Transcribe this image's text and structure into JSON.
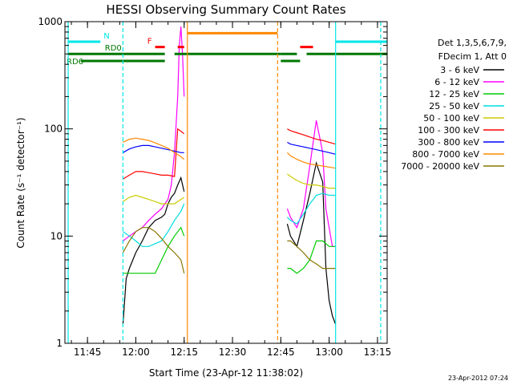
{
  "chart_data": {
    "type": "line",
    "title": "HESSI Observing Summary Count Rates",
    "xlabel": "Start Time (23-Apr-12 11:38:02)",
    "ylabel": "Count Rate (s⁻¹ detector⁻¹)",
    "yscale": "log",
    "ylim": [
      1,
      1000
    ],
    "xlim": [
      "11:38",
      "13:18"
    ],
    "xtick_labels": [
      "11:45",
      "12:00",
      "12:15",
      "12:30",
      "12:45",
      "13:00",
      "13:15"
    ],
    "ytick_labels": [
      "1",
      "10",
      "100",
      "1000"
    ],
    "legend_header": [
      "Det 1,3,5,6,7,9,",
      "FDecim 1, Att 0"
    ],
    "legend_placement": "right, outside plot",
    "timestamp": "23-Apr-2012 07:24",
    "series": [
      {
        "name": "3 - 6 keV",
        "color": "#000000",
        "segments": [
          {
            "t": [
              "11:56",
              "11:57",
              "11:58",
              "12:00",
              "12:02",
              "12:04",
              "12:06",
              "12:08",
              "12:09",
              "12:10",
              "12:11",
              "12:12",
              "12:13",
              "12:14",
              "12:15"
            ],
            "v": [
              1.5,
              4,
              5,
              7,
              9,
              12,
              14,
              15,
              16,
              20,
              23,
              25,
              30,
              35,
              26
            ]
          },
          {
            "t": [
              "12:47",
              "12:48",
              "12:50",
              "12:52",
              "12:54",
              "12:56",
              "12:58",
              "12:59",
              "13:00",
              "13:01",
              "13:02"
            ],
            "v": [
              13,
              10,
              8,
              14,
              25,
              48,
              32,
              5,
              2.5,
              1.8,
              1.5
            ]
          }
        ]
      },
      {
        "name": "6 - 12 keV",
        "color": "#ff00ff",
        "segments": [
          {
            "t": [
              "11:56",
              "11:58",
              "12:00",
              "12:02",
              "12:04",
              "12:06",
              "12:08",
              "12:09",
              "12:10",
              "12:11",
              "12:12",
              "12:13",
              "12:13.5",
              "12:14",
              "12:14.5",
              "12:15"
            ],
            "v": [
              9,
              10,
              11,
              12,
              14,
              16,
              18,
              20,
              22,
              30,
              60,
              200,
              600,
              900,
              500,
              200
            ]
          },
          {
            "t": [
              "12:47",
              "12:48",
              "12:50",
              "12:52",
              "12:54",
              "12:56",
              "12:57",
              "12:58",
              "12:59",
              "13:00",
              "13:01",
              "13:02"
            ],
            "v": [
              18,
              15,
              12,
              18,
              45,
              120,
              85,
              60,
              18,
              12,
              8,
              8
            ]
          }
        ]
      },
      {
        "name": "12 - 25 keV",
        "color": "#00cc00",
        "segments": [
          {
            "t": [
              "11:56",
              "11:58",
              "12:00",
              "12:02",
              "12:04",
              "12:06",
              "12:08",
              "12:10",
              "12:12",
              "12:14",
              "12:15"
            ],
            "v": [
              4.5,
              4.5,
              4.5,
              4.5,
              4.5,
              4.5,
              6,
              8,
              10,
              12,
              10
            ]
          },
          {
            "t": [
              "12:47",
              "12:48",
              "12:50",
              "12:52",
              "12:54",
              "12:56",
              "12:58",
              "13:00",
              "13:02"
            ],
            "v": [
              5,
              5,
              4.5,
              5,
              6,
              9,
              9,
              8,
              8
            ]
          }
        ]
      },
      {
        "name": "25 - 50 keV",
        "color": "#00dddd",
        "segments": [
          {
            "t": [
              "11:56",
              "11:58",
              "12:00",
              "12:02",
              "12:04",
              "12:06",
              "12:08",
              "12:10",
              "12:12",
              "12:14",
              "12:15"
            ],
            "v": [
              11,
              10,
              9,
              8,
              8,
              8.5,
              9,
              11,
              14,
              17,
              20
            ]
          },
          {
            "t": [
              "12:47",
              "12:48",
              "12:50",
              "12:52",
              "12:54",
              "12:56",
              "12:58",
              "13:00",
              "13:02"
            ],
            "v": [
              15,
              14,
              13,
              16,
              20,
              24,
              25,
              24,
              24
            ]
          }
        ]
      },
      {
        "name": "50 - 100 keV",
        "color": "#cccc00",
        "segments": [
          {
            "t": [
              "11:56",
              "11:58",
              "12:00",
              "12:02",
              "12:04",
              "12:06",
              "12:08",
              "12:10",
              "12:12",
              "12:14",
              "12:15"
            ],
            "v": [
              21,
              23,
              24,
              23,
              22,
              21,
              20,
              20,
              20,
              22,
              23
            ]
          },
          {
            "t": [
              "12:47",
              "12:48",
              "12:50",
              "12:52",
              "12:54",
              "12:56",
              "12:58",
              "13:00",
              "13:02"
            ],
            "v": [
              38,
              36,
              33,
              31,
              30,
              30,
              29,
              28,
              28
            ]
          }
        ]
      },
      {
        "name": "100 - 300 keV",
        "color": "#ff0000",
        "segments": [
          {
            "t": [
              "11:56",
              "11:58",
              "12:00",
              "12:02",
              "12:04",
              "12:06",
              "12:08",
              "12:10",
              "12:12",
              "12:13",
              "12:14",
              "12:15"
            ],
            "v": [
              34,
              37,
              40,
              40,
              39,
              38,
              37,
              37,
              36,
              100,
              95,
              90
            ]
          },
          {
            "t": [
              "12:47",
              "12:48",
              "12:50",
              "12:52",
              "12:54",
              "12:56",
              "12:58",
              "13:00",
              "13:02"
            ],
            "v": [
              100,
              96,
              92,
              88,
              84,
              80,
              78,
              75,
              72
            ]
          }
        ]
      },
      {
        "name": "300 - 800 keV",
        "color": "#0000ff",
        "segments": [
          {
            "t": [
              "11:56",
              "11:58",
              "12:00",
              "12:02",
              "12:04",
              "12:06",
              "12:08",
              "12:10",
              "12:12",
              "12:14",
              "12:15"
            ],
            "v": [
              60,
              65,
              68,
              70,
              70,
              68,
              66,
              64,
              62,
              60,
              60
            ]
          },
          {
            "t": [
              "12:47",
              "12:48",
              "12:50",
              "12:52",
              "12:54",
              "12:56",
              "12:58",
              "13:00",
              "13:02"
            ],
            "v": [
              75,
              72,
              70,
              68,
              66,
              64,
              62,
              60,
              58
            ]
          }
        ]
      },
      {
        "name": "800 - 7000 keV",
        "color": "#ff8800",
        "segments": [
          {
            "t": [
              "11:56",
              "11:58",
              "12:00",
              "12:02",
              "12:04",
              "12:06",
              "12:08",
              "12:10",
              "12:12",
              "12:14",
              "12:15"
            ],
            "v": [
              75,
              80,
              82,
              80,
              78,
              74,
              70,
              66,
              60,
              55,
              52
            ]
          },
          {
            "t": [
              "12:47",
              "12:48",
              "12:50",
              "12:52",
              "12:54",
              "12:56",
              "12:58",
              "13:00",
              "13:02"
            ],
            "v": [
              60,
              56,
              52,
              49,
              47,
              46,
              45,
              44,
              43
            ]
          }
        ]
      },
      {
        "name": "7000 - 20000 keV",
        "color": "#887700",
        "segments": [
          {
            "t": [
              "11:56",
              "11:58",
              "12:00",
              "12:02",
              "12:04",
              "12:06",
              "12:08",
              "12:10",
              "12:12",
              "12:14",
              "12:15"
            ],
            "v": [
              7,
              9,
              11,
              12,
              12,
              11,
              9.5,
              8,
              7,
              6,
              4.5
            ]
          },
          {
            "t": [
              "12:47",
              "12:48",
              "12:50",
              "12:52",
              "12:54",
              "12:56",
              "12:58",
              "13:00",
              "13:02"
            ],
            "v": [
              9,
              9,
              8,
              7,
              6,
              5.5,
              5,
              5,
              5
            ]
          }
        ]
      }
    ],
    "status_bars": [
      {
        "label": "N",
        "color": "#00e6e6",
        "value": 650,
        "segments": [
          [
            "11:39",
            "11:49"
          ],
          [
            "13:02",
            "13:18"
          ]
        ]
      },
      {
        "label": "F",
        "color": "#ff0000",
        "value": 580,
        "segments": [
          [
            "12:06",
            "12:09"
          ],
          [
            "12:13",
            "12:15"
          ],
          [
            "12:51",
            "12:55"
          ]
        ]
      },
      {
        "label": "RD0",
        "color": "#007700",
        "value": 500,
        "segments": [
          [
            "11:39",
            "12:09"
          ],
          [
            "12:12",
            "12:45"
          ],
          [
            "12:45",
            "12:50"
          ],
          [
            "12:53",
            "13:18"
          ]
        ]
      },
      {
        "label": "RD6",
        "color": "#007700",
        "value": 430,
        "segments": [
          [
            "11:43",
            "12:09"
          ],
          [
            "12:45",
            "12:51"
          ]
        ]
      },
      {
        "label": "",
        "color": "#ff8800",
        "value": 780,
        "segments": [
          [
            "12:16",
            "12:44"
          ]
        ]
      }
    ],
    "vertical_lines": [
      {
        "t": "11:39",
        "color": "#00e6e6",
        "style": "solid"
      },
      {
        "t": "11:56",
        "color": "#00e6e6",
        "style": "dashed"
      },
      {
        "t": "12:16",
        "color": "#ff8800",
        "style": "solid"
      },
      {
        "t": "12:44",
        "color": "#ff8800",
        "style": "dashed"
      },
      {
        "t": "13:02",
        "color": "#00e6e6",
        "style": "solid"
      },
      {
        "t": "13:16",
        "color": "#00e6e6",
        "style": "dashed"
      }
    ]
  }
}
